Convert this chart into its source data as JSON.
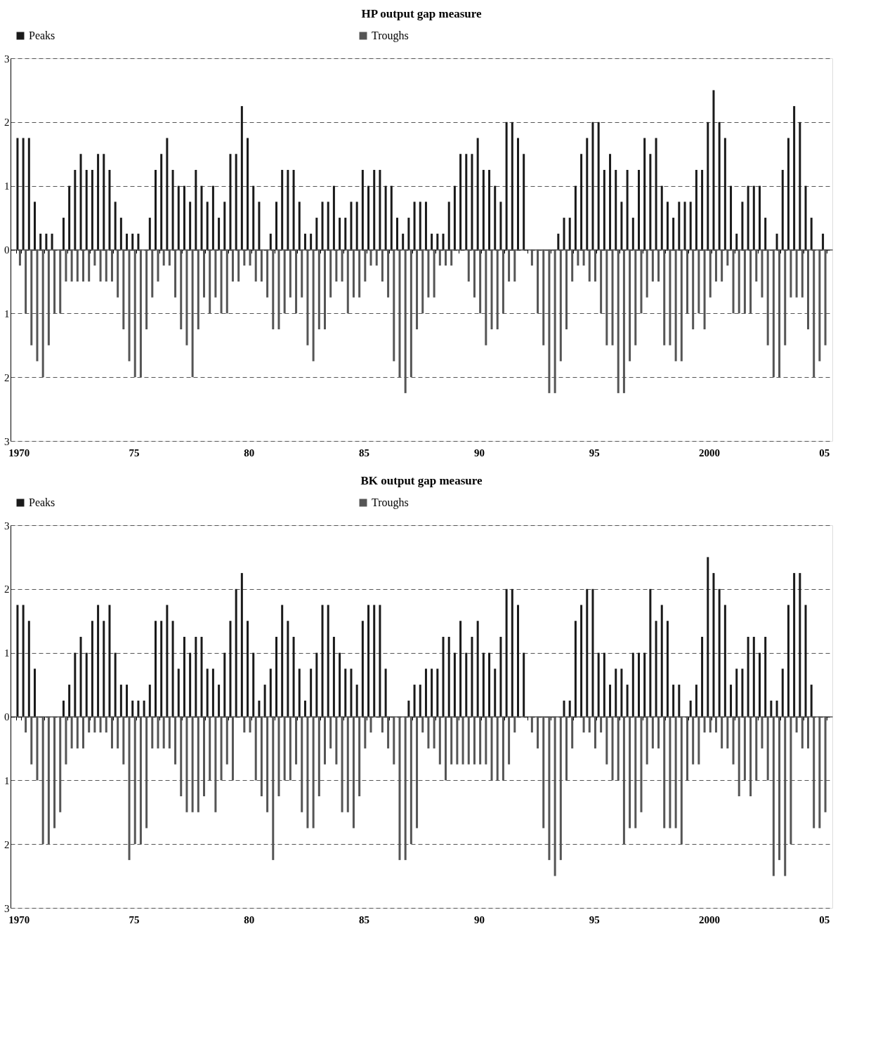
{
  "chart_data": [
    {
      "type": "bar",
      "title": "HP output gap measure",
      "legend": "top",
      "grid": "y",
      "categories": [
        "1970",
        null,
        null,
        null,
        null,
        null,
        null,
        null,
        null,
        null,
        null,
        null,
        null,
        null,
        null,
        null,
        null,
        null,
        null,
        null,
        "75",
        null,
        null,
        null,
        null,
        null,
        null,
        null,
        null,
        null,
        null,
        null,
        null,
        null,
        null,
        null,
        null,
        null,
        null,
        null,
        "80",
        null,
        null,
        null,
        null,
        null,
        null,
        null,
        null,
        null,
        null,
        null,
        null,
        null,
        null,
        null,
        null,
        null,
        null,
        null,
        "85",
        null,
        null,
        null,
        null,
        null,
        null,
        null,
        null,
        null,
        null,
        null,
        null,
        null,
        null,
        null,
        null,
        null,
        null,
        null,
        "90",
        null,
        null,
        null,
        null,
        null,
        null,
        null,
        null,
        null,
        null,
        null,
        null,
        null,
        null,
        null,
        null,
        null,
        null,
        null,
        "95",
        null,
        null,
        null,
        null,
        null,
        null,
        null,
        null,
        null,
        null,
        null,
        null,
        null,
        null,
        null,
        null,
        null,
        null,
        null,
        "2000",
        null,
        null,
        null,
        null,
        null,
        null,
        null,
        null,
        null,
        null,
        null,
        null,
        null,
        null,
        null,
        null,
        null,
        null,
        null,
        "05"
      ],
      "ylim": [
        -3,
        3
      ],
      "yticks": [
        {
          "value": -3,
          "label": "3"
        },
        {
          "value": -2,
          "label": "2"
        },
        {
          "value": -1,
          "label": "1"
        },
        0,
        1,
        2,
        3
      ],
      "series": [
        {
          "name": "Peaks",
          "color": "#1a1a1a",
          "values": [
            1.75,
            1.75,
            1.75,
            0.75,
            0.25,
            0.25,
            0.25,
            0,
            0.5,
            1.0,
            1.25,
            1.5,
            1.25,
            1.25,
            1.5,
            1.5,
            1.25,
            0.75,
            0.5,
            0.25,
            0.25,
            0.25,
            0,
            0.5,
            1.25,
            1.5,
            1.75,
            1.25,
            1.0,
            1.0,
            0.75,
            1.25,
            1.0,
            0.75,
            1.0,
            0.5,
            0.75,
            1.5,
            1.5,
            2.25,
            1.75,
            1.0,
            0.75,
            0,
            0.25,
            0.75,
            1.25,
            1.25,
            1.25,
            0.75,
            0.25,
            0.25,
            0.5,
            0.75,
            0.75,
            1.0,
            0.5,
            0.5,
            0.75,
            0.75,
            1.25,
            1.0,
            1.25,
            1.25,
            1.0,
            1.0,
            0.5,
            0.25,
            0.5,
            0.75,
            0.75,
            0.75,
            0.25,
            0.25,
            0.25,
            0.75,
            1.0,
            1.5,
            1.5,
            1.5,
            1.75,
            1.25,
            1.25,
            1.0,
            0.75,
            2.0,
            2.0,
            1.75,
            1.5,
            0,
            0,
            0,
            0,
            0,
            0.25,
            0.5,
            0.5,
            1.0,
            1.5,
            1.75,
            2.0,
            2.0,
            1.25,
            1.5,
            1.25,
            0.75,
            1.25,
            0.5,
            1.25,
            1.75,
            1.5,
            1.75,
            1.0,
            0.75,
            0.5,
            0.75,
            0.75,
            0.75,
            1.25,
            1.25,
            2.0,
            2.5,
            2.0,
            1.75,
            1.0,
            0.25,
            0.75,
            1.0,
            1.0,
            1.0,
            0.5,
            0,
            0.25,
            1.25,
            1.75,
            2.25,
            2.0,
            1.0,
            0.5,
            0,
            0.25
          ]
        },
        {
          "name": "Troughs",
          "color": "#555555",
          "values": [
            -0.25,
            -1,
            -1.5,
            -1.75,
            -2,
            -1.5,
            -1,
            -1,
            -0.5,
            -0.5,
            -0.5,
            -0.5,
            -0.5,
            -0.25,
            -0.5,
            -0.5,
            -0.5,
            -0.75,
            -1.25,
            -1.75,
            -2,
            -2,
            -1.25,
            -0.75,
            -0.5,
            -0.25,
            -0.25,
            -0.75,
            -1.25,
            -1.5,
            -2,
            -1.25,
            -0.75,
            -1,
            -0.75,
            -1,
            -1,
            -0.5,
            -0.5,
            -0.25,
            -0.25,
            -0.5,
            -0.5,
            -0.75,
            -1.25,
            -1.25,
            -1,
            -0.75,
            -1,
            -0.75,
            -1.5,
            -1.75,
            -1.25,
            -1.25,
            -0.75,
            -0.5,
            -0.5,
            -1,
            -0.75,
            -0.75,
            -0.5,
            -0.25,
            -0.25,
            -0.5,
            -0.75,
            -1.75,
            -2,
            -2.25,
            -2,
            -1.25,
            -1,
            -0.75,
            -0.75,
            -0.25,
            -0.25,
            -0.25,
            0,
            0,
            -0.5,
            -0.75,
            -1,
            -1.5,
            -1.25,
            -1.25,
            -1,
            -0.5,
            -0.5,
            0,
            0,
            -0.25,
            -1,
            -1.5,
            -2.25,
            -2.25,
            -1.75,
            -1.25,
            -0.5,
            -0.25,
            -0.25,
            -0.5,
            -0.5,
            -1,
            -1.5,
            -1.5,
            -2.25,
            -2.25,
            -1.75,
            -1.5,
            -1,
            -0.75,
            -0.5,
            -0.5,
            -1.5,
            -1.5,
            -1.75,
            -1.75,
            -1,
            -1.25,
            -1,
            -1.25,
            -0.75,
            -0.5,
            -0.5,
            -0.25,
            -1,
            -1,
            -1,
            -1,
            -0.5,
            -0.75,
            -1.5,
            -2,
            -2,
            -1.5,
            -0.75,
            -0.75,
            -0.75,
            -1.25,
            -2,
            -1.75,
            -1.5
          ]
        }
      ]
    },
    {
      "type": "bar",
      "title": "BK output gap measure",
      "legend": "top",
      "grid": "y",
      "categories": [
        "1970",
        null,
        null,
        null,
        null,
        null,
        null,
        null,
        null,
        null,
        null,
        null,
        null,
        null,
        null,
        null,
        null,
        null,
        null,
        null,
        "75",
        null,
        null,
        null,
        null,
        null,
        null,
        null,
        null,
        null,
        null,
        null,
        null,
        null,
        null,
        null,
        null,
        null,
        null,
        null,
        "80",
        null,
        null,
        null,
        null,
        null,
        null,
        null,
        null,
        null,
        null,
        null,
        null,
        null,
        null,
        null,
        null,
        null,
        null,
        null,
        "85",
        null,
        null,
        null,
        null,
        null,
        null,
        null,
        null,
        null,
        null,
        null,
        null,
        null,
        null,
        null,
        null,
        null,
        null,
        null,
        "90",
        null,
        null,
        null,
        null,
        null,
        null,
        null,
        null,
        null,
        null,
        null,
        null,
        null,
        null,
        null,
        null,
        null,
        null,
        null,
        "95",
        null,
        null,
        null,
        null,
        null,
        null,
        null,
        null,
        null,
        null,
        null,
        null,
        null,
        null,
        null,
        null,
        null,
        null,
        null,
        "2000",
        null,
        null,
        null,
        null,
        null,
        null,
        null,
        null,
        null,
        null,
        null,
        null,
        null,
        null,
        null,
        null,
        null,
        null,
        null,
        "05"
      ],
      "ylim": [
        -3,
        3
      ],
      "yticks": [
        {
          "value": -3,
          "label": "3"
        },
        {
          "value": -2,
          "label": "2"
        },
        {
          "value": -1,
          "label": "1"
        },
        0,
        1,
        2,
        3
      ],
      "series": [
        {
          "name": "Peaks",
          "color": "#1a1a1a",
          "values": [
            1.75,
            1.75,
            1.5,
            0.75,
            0,
            0,
            0,
            0,
            0.25,
            0.5,
            1.0,
            1.25,
            1.0,
            1.5,
            1.75,
            1.5,
            1.75,
            1.0,
            0.5,
            0.5,
            0.25,
            0.25,
            0.25,
            0.5,
            1.5,
            1.5,
            1.75,
            1.5,
            0.75,
            1.25,
            1.0,
            1.25,
            1.25,
            0.75,
            0.75,
            0.5,
            1.0,
            1.5,
            2.0,
            2.25,
            1.5,
            1.0,
            0.25,
            0.5,
            0.75,
            1.25,
            1.75,
            1.5,
            1.25,
            0.75,
            0.25,
            0.75,
            1.0,
            1.75,
            1.75,
            1.25,
            1.0,
            0.75,
            0.75,
            0.5,
            1.5,
            1.75,
            1.75,
            1.75,
            0.75,
            0,
            0,
            0,
            0.25,
            0.5,
            0.5,
            0.75,
            0.75,
            0.75,
            1.25,
            1.25,
            1.0,
            1.5,
            1.0,
            1.25,
            1.5,
            1.0,
            1.0,
            0.75,
            1.25,
            2.0,
            2.0,
            1.75,
            1.0,
            0,
            0,
            0,
            0,
            0,
            0,
            0.25,
            0.25,
            1.5,
            1.75,
            2.0,
            2.0,
            1.0,
            1.0,
            0.5,
            0.75,
            0.75,
            0.5,
            1.0,
            1.0,
            1.0,
            2.0,
            1.5,
            1.75,
            1.5,
            0.5,
            0.5,
            0,
            0.25,
            0.5,
            1.25,
            2.5,
            2.25,
            2.0,
            1.75,
            0.5,
            0.75,
            0.75,
            1.25,
            1.25,
            1.0,
            1.25,
            0.25,
            0.25,
            0.75,
            1.75,
            2.25,
            2.25,
            1.75,
            0.5,
            0,
            0
          ]
        },
        {
          "name": "Troughs",
          "color": "#555555",
          "values": [
            0,
            -0.25,
            -0.75,
            -1,
            -2,
            -2,
            -1.75,
            -1.5,
            -0.75,
            -0.5,
            -0.5,
            -0.5,
            -0.25,
            -0.25,
            -0.25,
            -0.25,
            -0.5,
            -0.5,
            -0.75,
            -2.25,
            -2,
            -2,
            -1.75,
            -0.5,
            -0.5,
            -0.5,
            -0.5,
            -0.75,
            -1.25,
            -1.5,
            -1.5,
            -1.5,
            -1.25,
            -1,
            -1.5,
            -1,
            -0.75,
            -1,
            0,
            -0.25,
            -0.25,
            -1,
            -1.25,
            -1.5,
            -2.25,
            -1.25,
            -1,
            -1,
            -0.75,
            -1.5,
            -1.75,
            -1.75,
            -1.25,
            -0.75,
            -0.5,
            -0.75,
            -1.5,
            -1.5,
            -1.75,
            -1.25,
            -0.5,
            -0.25,
            0,
            -0.25,
            -0.5,
            -0.75,
            -2.25,
            -2.25,
            -2,
            -1.75,
            -0.25,
            -0.5,
            -0.5,
            -0.75,
            -1,
            -0.75,
            -0.75,
            -0.75,
            -0.75,
            -0.75,
            -0.75,
            -0.75,
            -1,
            -1,
            -1,
            -0.75,
            -0.25,
            0,
            0,
            -0.25,
            -0.5,
            -1.75,
            -2.25,
            -2.5,
            -2.25,
            -1,
            -0.5,
            0,
            -0.25,
            -0.25,
            -0.5,
            -0.25,
            -0.75,
            -1,
            -1,
            -2,
            -1.75,
            -1.75,
            -1.5,
            -0.75,
            -0.5,
            -0.5,
            -1.75,
            -1.75,
            -1.75,
            -2,
            -1,
            -0.75,
            -0.75,
            -0.25,
            -0.25,
            -0.25,
            -0.5,
            -0.5,
            -0.75,
            -1.25,
            -1,
            -1.25,
            -1,
            -0.5,
            -1,
            -2.5,
            -2.25,
            -2.5,
            -2,
            -0.25,
            -0.5,
            -0.5,
            -1.75,
            -1.75,
            -1.5
          ]
        }
      ]
    }
  ]
}
